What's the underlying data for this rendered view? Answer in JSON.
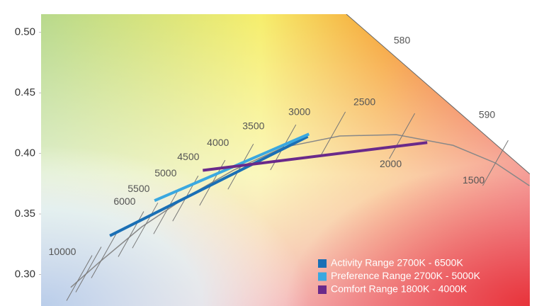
{
  "chart_data": {
    "type": "line",
    "xlim": [
      0.233,
      0.638
    ],
    "ylim": [
      0.274,
      0.515
    ],
    "yticks": [
      {
        "value": 0.3,
        "label": "0.30"
      },
      {
        "value": 0.35,
        "label": "0.35"
      },
      {
        "value": 0.4,
        "label": "0.40"
      },
      {
        "value": 0.45,
        "label": "0.45"
      },
      {
        "value": 0.5,
        "label": "0.50"
      }
    ],
    "series": [
      {
        "name": "Activity Range 2700K - 6500K",
        "color": "#1a6fb5",
        "x": [
          0.29,
          0.454
        ],
        "values": [
          0.332,
          0.414
        ]
      },
      {
        "name": "Preference Range 2700K - 5000K",
        "color": "#3aa8e0",
        "x": [
          0.327,
          0.455
        ],
        "values": [
          0.361,
          0.416
        ]
      },
      {
        "name": "Comfort Range 1800K - 4000K",
        "color": "#6a2a8a",
        "x": [
          0.367,
          0.553
        ],
        "values": [
          0.386,
          0.409
        ]
      }
    ],
    "locus": {
      "x": [
        0.2576,
        0.2811,
        0.3163,
        0.3515,
        0.3925,
        0.4336,
        0.4805,
        0.5274,
        0.5743,
        0.6095,
        0.6377
      ],
      "y": [
        0.2894,
        0.31,
        0.3393,
        0.3628,
        0.3862,
        0.405,
        0.4144,
        0.4155,
        0.4067,
        0.3921,
        0.3733
      ]
    },
    "isotherms": {
      "x": [
        0.2647,
        0.2723,
        0.2852,
        0.3075,
        0.3192,
        0.3368,
        0.3526,
        0.3749,
        0.3984,
        0.4336,
        0.4746,
        0.5321,
        0.6095
      ],
      "y": [
        0.2971,
        0.3041,
        0.3158,
        0.3334,
        0.3405,
        0.3522,
        0.3628,
        0.3757,
        0.3891,
        0.405,
        0.4156,
        0.4144,
        0.3921
      ]
    },
    "spectral_locus": {
      "x": [
        0.486,
        0.638
      ],
      "y": [
        0.515,
        0.383
      ]
    },
    "annotations": [
      {
        "text": "10000",
        "x": 0.2506,
        "y": 0.3182
      },
      {
        "text": "6000",
        "x": 0.3022,
        "y": 0.3598
      },
      {
        "text": "5500",
        "x": 0.3139,
        "y": 0.3704
      },
      {
        "text": "5000",
        "x": 0.3362,
        "y": 0.3833
      },
      {
        "text": "4500",
        "x": 0.355,
        "y": 0.3968
      },
      {
        "text": "4000",
        "x": 0.3796,
        "y": 0.4085
      },
      {
        "text": "3500",
        "x": 0.409,
        "y": 0.422
      },
      {
        "text": "3000",
        "x": 0.4471,
        "y": 0.4337
      },
      {
        "text": "2500",
        "x": 0.501,
        "y": 0.4419
      },
      {
        "text": "2000",
        "x": 0.5227,
        "y": 0.3909
      },
      {
        "text": "1500",
        "x": 0.5914,
        "y": 0.3774
      },
      {
        "text": "580",
        "x": 0.5321,
        "y": 0.493
      },
      {
        "text": "590",
        "x": 0.6025,
        "y": 0.4314
      }
    ]
  }
}
